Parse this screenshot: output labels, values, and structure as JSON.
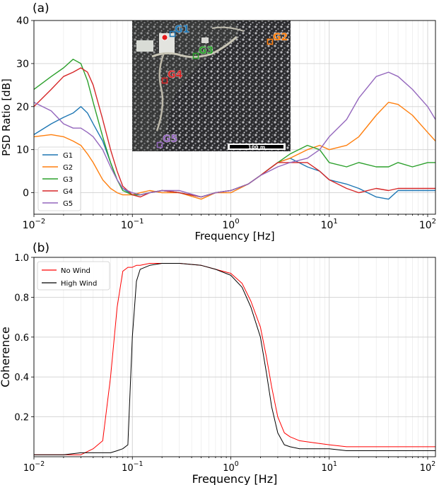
{
  "chart_data": [
    {
      "type": "line",
      "panel_label": "(a)",
      "xscale": "log",
      "xlim": [
        0.01,
        120
      ],
      "ylim": [
        -5,
        40
      ],
      "xlabel": "Frequency [Hz]",
      "ylabel": "PSD Ratio [dB]",
      "x_ticks": [
        {
          "value": 0.01,
          "base": "10",
          "exp": "−2"
        },
        {
          "value": 0.1,
          "base": "10",
          "exp": "−1"
        },
        {
          "value": 1,
          "base": "10",
          "exp": "0"
        },
        {
          "value": 10,
          "base": "10",
          "exp": "1"
        },
        {
          "value": 100,
          "base": "10",
          "exp": "2"
        }
      ],
      "y_ticks": [
        0,
        10,
        20,
        30,
        40
      ],
      "grid": true,
      "legend": "lower-left",
      "x": [
        0.01,
        0.015,
        0.02,
        0.025,
        0.03,
        0.035,
        0.04,
        0.05,
        0.06,
        0.07,
        0.08,
        0.1,
        0.12,
        0.15,
        0.2,
        0.3,
        0.5,
        0.7,
        1.0,
        1.5,
        2.0,
        3.0,
        4.0,
        6.0,
        8.0,
        10,
        15,
        20,
        30,
        40,
        50,
        70,
        100,
        120
      ],
      "series": [
        {
          "name": "G1",
          "color": "#1f77b4",
          "values": [
            13.5,
            16,
            17.5,
            18.5,
            20,
            18.5,
            16,
            12,
            7,
            3,
            1,
            -0.5,
            -0.5,
            0,
            0.5,
            0,
            -1,
            0,
            0.5,
            2,
            4,
            7,
            8,
            6,
            5,
            3,
            2,
            1,
            -1,
            -1.5,
            0.5,
            0.5,
            0.5,
            0.5
          ]
        },
        {
          "name": "G2",
          "color": "#ff7f0e",
          "values": [
            13,
            13.5,
            13,
            12,
            11,
            9,
            7,
            3,
            1,
            0,
            -0.5,
            -0.5,
            0,
            0.5,
            0,
            0,
            -1.5,
            0,
            0,
            2,
            4,
            7,
            8,
            10,
            11,
            10,
            11,
            13,
            18,
            21,
            20.5,
            18,
            14,
            12
          ]
        },
        {
          "name": "G3",
          "color": "#2ca02c",
          "values": [
            24,
            27,
            29,
            31,
            30,
            26,
            21,
            13,
            7,
            3,
            0.5,
            -0.5,
            -0.5,
            0,
            0.5,
            0,
            -1,
            0,
            0.5,
            2,
            4,
            7,
            9,
            11,
            10,
            7,
            6,
            7,
            6,
            6,
            7,
            6,
            7,
            7
          ]
        },
        {
          "name": "G4",
          "color": "#d62728",
          "values": [
            20,
            24,
            27,
            28,
            29,
            28,
            25,
            17,
            10,
            5,
            1.5,
            -0.5,
            -1,
            0,
            0.5,
            0,
            -1,
            0,
            0.5,
            2,
            4,
            7,
            7,
            7,
            5,
            3,
            1,
            0,
            1,
            0.5,
            1,
            1,
            1,
            1
          ]
        },
        {
          "name": "G5",
          "color": "#9467bd",
          "values": [
            21,
            19,
            16,
            15,
            15,
            14,
            13,
            10,
            6,
            3,
            1,
            0,
            -0.5,
            0,
            0.5,
            0.5,
            -1,
            0,
            0.5,
            2,
            4,
            6,
            7,
            8,
            10,
            13,
            17,
            22,
            27,
            28,
            27,
            24,
            20,
            17
          ]
        }
      ],
      "inset": {
        "type": "aerial-image",
        "scale_label": "100 m",
        "markers": [
          {
            "label": "G1",
            "color": "#1f77b4"
          },
          {
            "label": "G2",
            "color": "#ff7f0e"
          },
          {
            "label": "G3",
            "color": "#2ca02c"
          },
          {
            "label": "G4",
            "color": "#d62728"
          },
          {
            "label": "G5",
            "color": "#9467bd"
          }
        ]
      }
    },
    {
      "type": "line",
      "panel_label": "(b)",
      "xscale": "log",
      "xlim": [
        0.01,
        120
      ],
      "ylim": [
        0,
        1.0
      ],
      "xlabel": "Frequency [Hz]",
      "ylabel": "Coherence",
      "x_ticks": [
        {
          "value": 0.01,
          "base": "10",
          "exp": "−2"
        },
        {
          "value": 0.1,
          "base": "10",
          "exp": "−1"
        },
        {
          "value": 1,
          "base": "10",
          "exp": "0"
        },
        {
          "value": 10,
          "base": "10",
          "exp": "1"
        },
        {
          "value": 100,
          "base": "10",
          "exp": "2"
        }
      ],
      "y_ticks": [
        "0.2",
        "0.4",
        "0.6",
        "0.8",
        "1.0"
      ],
      "grid": true,
      "legend": "upper-left",
      "x": [
        0.01,
        0.02,
        0.03,
        0.04,
        0.05,
        0.06,
        0.07,
        0.08,
        0.09,
        0.1,
        0.11,
        0.12,
        0.15,
        0.2,
        0.3,
        0.5,
        0.7,
        1.0,
        1.3,
        1.6,
        2.0,
        2.3,
        2.6,
        3.0,
        3.5,
        4.0,
        5.0,
        7.0,
        10,
        15,
        20,
        30,
        50,
        70,
        100,
        120
      ],
      "series": [
        {
          "name": "No Wind",
          "color": "#ff0000",
          "values": [
            0.01,
            0.01,
            0.01,
            0.04,
            0.08,
            0.4,
            0.75,
            0.93,
            0.95,
            0.95,
            0.96,
            0.96,
            0.97,
            0.97,
            0.97,
            0.96,
            0.94,
            0.92,
            0.87,
            0.78,
            0.65,
            0.5,
            0.35,
            0.2,
            0.12,
            0.1,
            0.08,
            0.07,
            0.06,
            0.05,
            0.05,
            0.05,
            0.05,
            0.05,
            0.05,
            0.05
          ]
        },
        {
          "name": "High Wind",
          "color": "#000000",
          "values": [
            0.01,
            0.01,
            0.02,
            0.02,
            0.02,
            0.02,
            0.03,
            0.04,
            0.06,
            0.6,
            0.88,
            0.94,
            0.96,
            0.97,
            0.97,
            0.96,
            0.94,
            0.91,
            0.85,
            0.75,
            0.6,
            0.42,
            0.25,
            0.12,
            0.06,
            0.05,
            0.04,
            0.04,
            0.04,
            0.03,
            0.03,
            0.03,
            0.03,
            0.03,
            0.03,
            0.03
          ]
        }
      ]
    }
  ]
}
